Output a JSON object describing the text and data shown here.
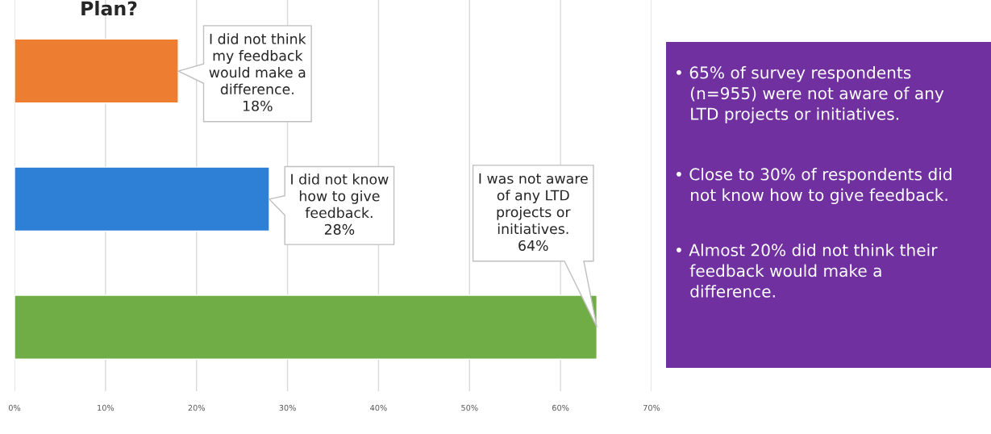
{
  "chart_data": {
    "type": "bar",
    "orientation": "horizontal",
    "title": "Plan?",
    "categories": [
      null,
      null,
      null
    ],
    "values": [
      18,
      28,
      64
    ],
    "colors": [
      "#ed7d31",
      "#2e7fd6",
      "#70ad47"
    ],
    "xlim": [
      0,
      70
    ],
    "xticks": [
      {
        "value": 0,
        "label": "0%"
      },
      {
        "value": 10,
        "label": "10%"
      },
      {
        "value": 20,
        "label": "20%"
      },
      {
        "value": 30,
        "label": "30%"
      },
      {
        "value": 40,
        "label": "40%"
      },
      {
        "value": 50,
        "label": "50%"
      },
      {
        "value": 60,
        "label": "60%"
      },
      {
        "value": 70,
        "label": "70%"
      }
    ],
    "grid": "x",
    "annotations": [
      "I did not think\nmy feedback\nwould make a\ndifference.\n18%",
      "I did not know\nhow to give\nfeedback.\n28%",
      "I was not aware\nof any LTD\nprojects or\ninitiatives.\n64%",
      "• 65% of survey respondents\n   (n=955) were not aware of any\n   LTD projects or initiatives.",
      "• Close to 30% of respondents did\n   not know how to give feedback.",
      "• Almost 20% did not think their\n   feedback would make a\n   difference."
    ]
  }
}
